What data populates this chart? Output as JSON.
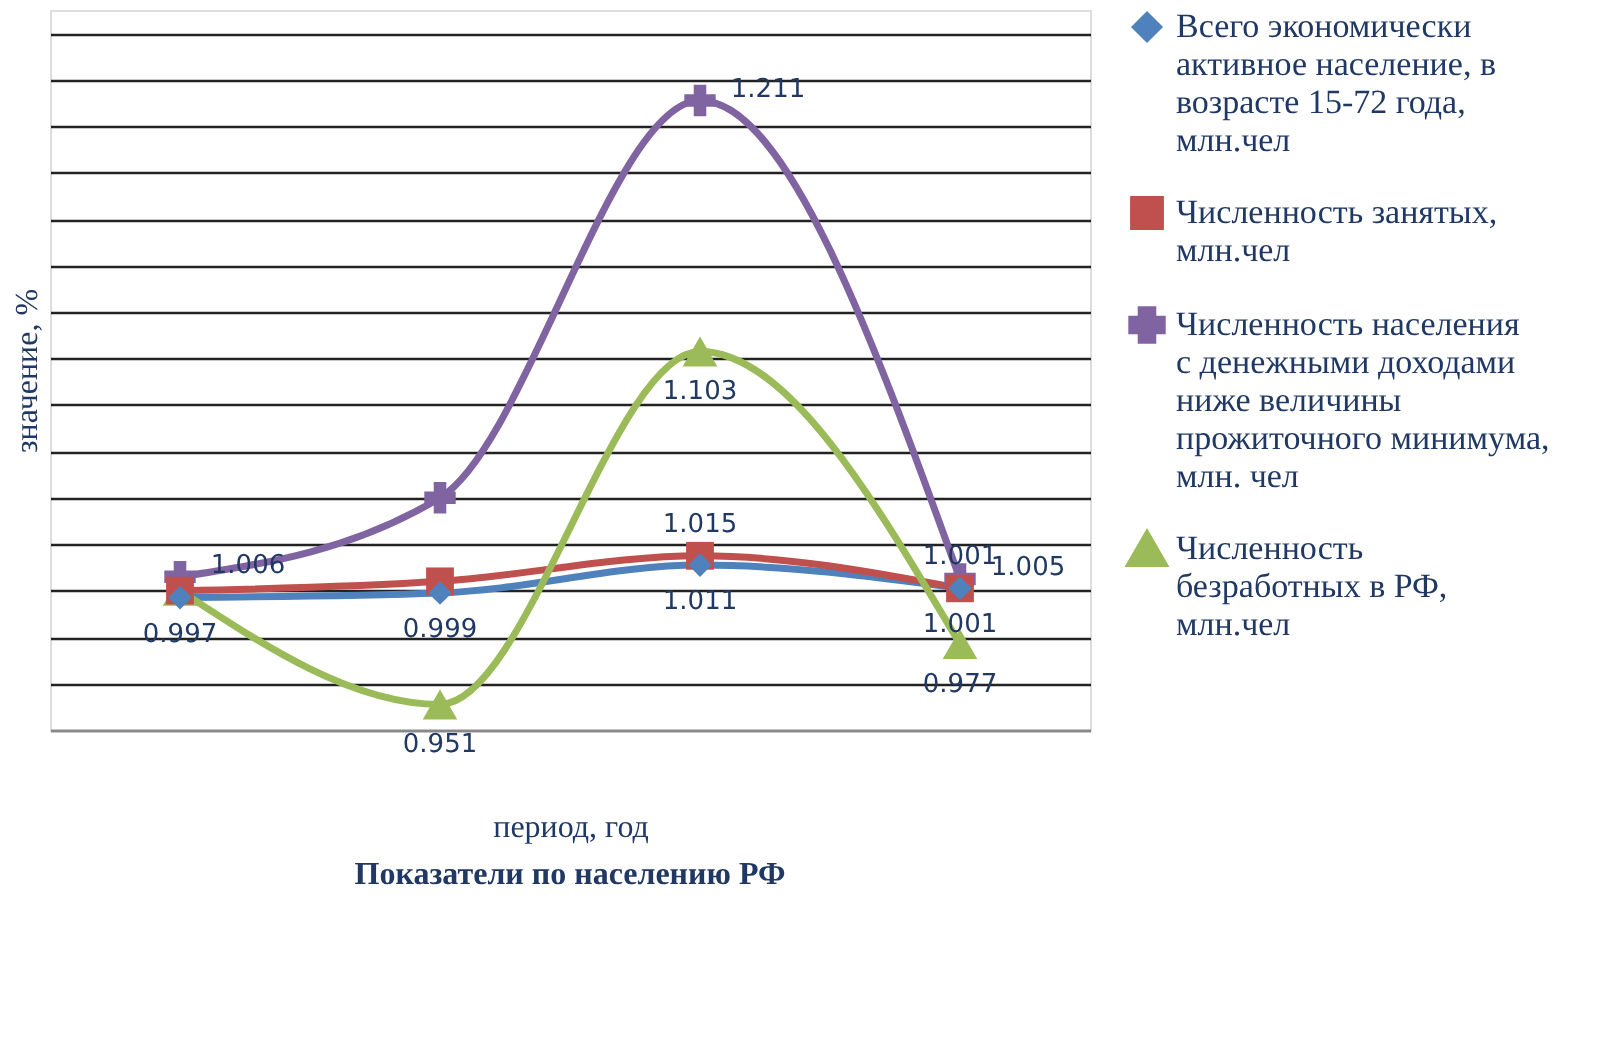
{
  "chart_data": {
    "type": "line",
    "title": "Показатели по населению РФ",
    "xlabel": "период, год",
    "ylabel": "значение, %",
    "categories": [
      null,
      null,
      null,
      null
    ],
    "ylim": [
      0.94,
      1.25
    ],
    "grid": "y",
    "legend": "right",
    "tick_labels": false,
    "line_style": "solid",
    "series": [
      {
        "name": "Всего экономически активное население, в возрасте 15-72 года, млн.чел",
        "color": "#4f81bd",
        "marker": "diamond",
        "values": [
          0.997,
          0.999,
          1.011,
          1.001
        ],
        "value_labels": [
          "0.997",
          "0.999",
          "1.011",
          "1.001"
        ]
      },
      {
        "name": "Численность занятых, млн.чел",
        "color": "#c0504d",
        "marker": "square",
        "values": [
          1.0,
          1.004,
          1.015,
          1.001
        ],
        "value_labels": [
          null,
          null,
          "1.015",
          "1.001"
        ]
      },
      {
        "name": "Численность населения с денежными доходами ниже величины прожиточного минимума, млн. чел",
        "color": "#8064a2",
        "marker": "cross",
        "values": [
          1.006,
          1.04,
          1.211,
          1.005
        ],
        "value_labels": [
          "1.006",
          null,
          "1.211",
          "1.005"
        ]
      },
      {
        "name": "Численность безработных в РФ, млн.чел",
        "color": "#9bbb59",
        "marker": "triangle",
        "values": [
          1.0,
          0.951,
          1.103,
          0.977
        ],
        "value_labels": [
          null,
          "0.951",
          "1.103",
          "0.977"
        ]
      }
    ]
  }
}
